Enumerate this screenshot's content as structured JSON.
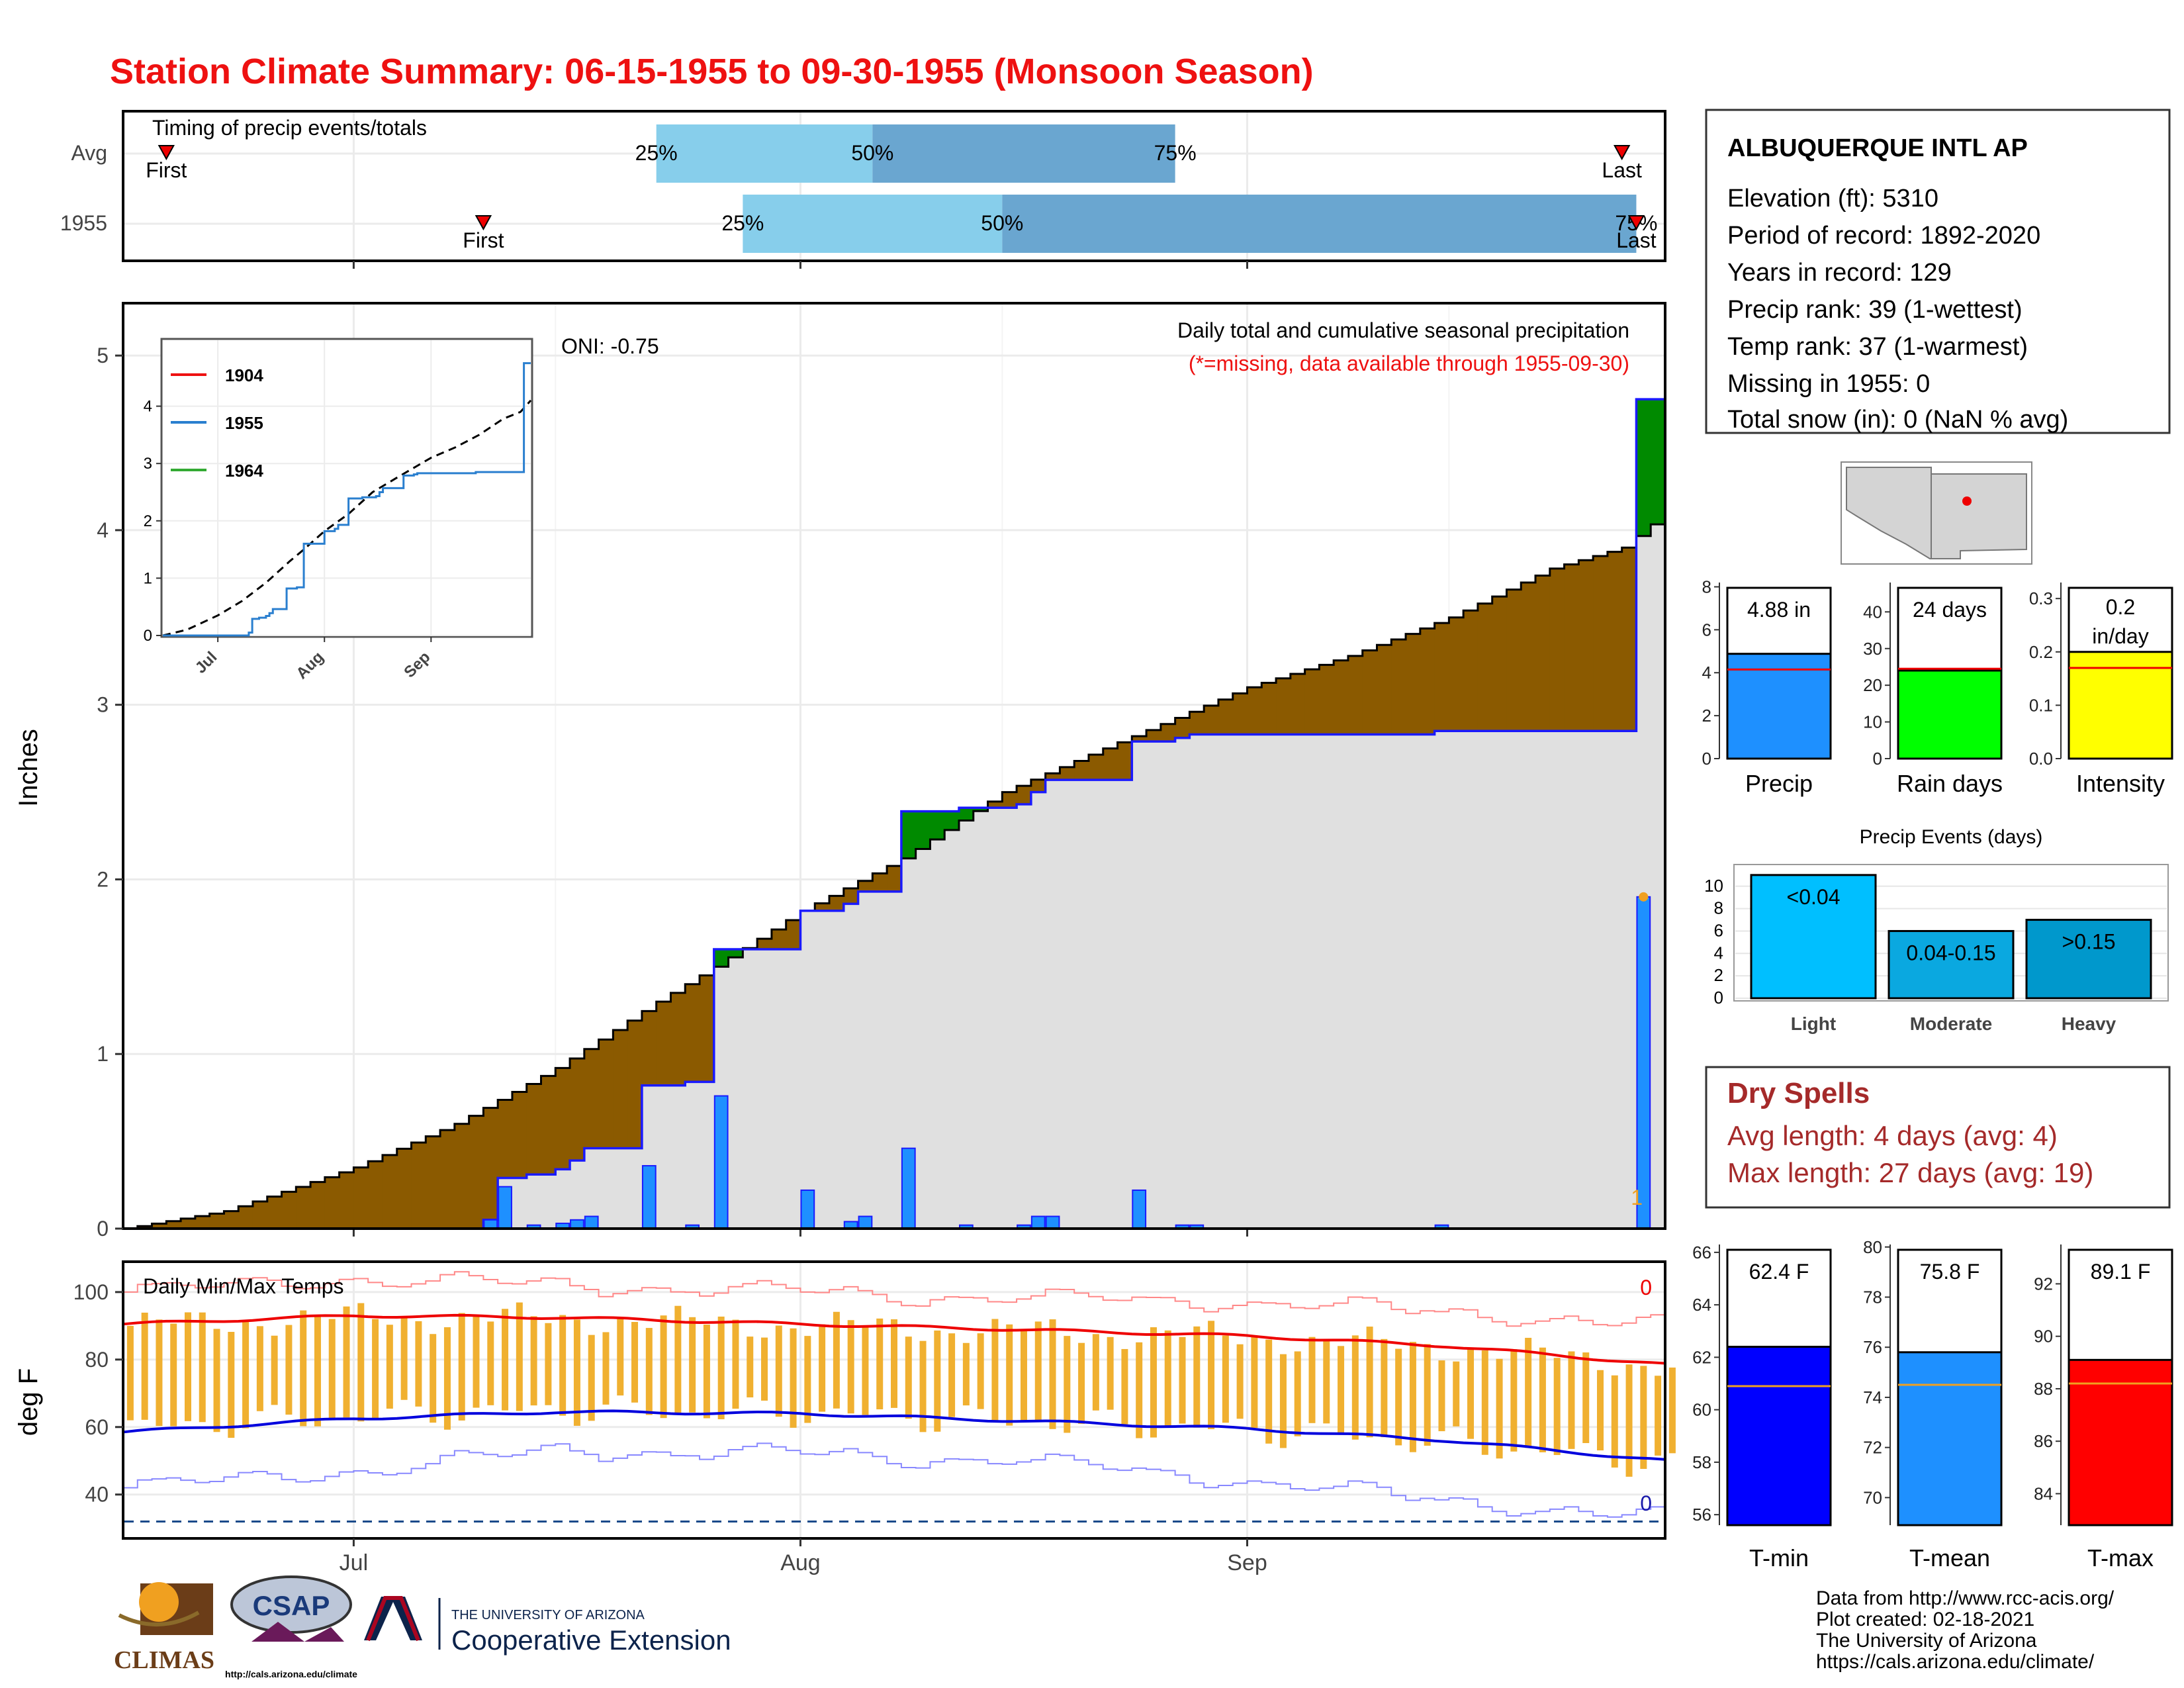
{
  "title": "Station Climate Summary: 06-15-1955 to 09-30-1955 (Monsoon Season)",
  "colors": {
    "title": "#ee1111",
    "light_blue": "#87ceeb",
    "mid_blue": "#6aa6d0",
    "brown": "#8b5a00",
    "green": "#008a00",
    "grey_fill": "#e0e0e0",
    "blue_line": "#1a1aff",
    "bar_blue": "#1e90ff",
    "orange": "#f0b030",
    "red": "#ee0000",
    "dry_spell_text": "#a52a2a"
  },
  "timing_panel": {
    "title": "Timing of precip events/totals",
    "rows": [
      {
        "label": "Avg",
        "first_label": "First",
        "last_label": "Last",
        "q25_label": "25%",
        "q50_label": "50%",
        "q75_label": "75%",
        "first": "1955-06-18",
        "q25": "1955-07-22",
        "q50": "1955-08-06",
        "q75": "1955-08-27",
        "last": "1955-09-27"
      },
      {
        "label": "1955",
        "first_label": "First",
        "last_label": "Last",
        "q25_label": "25%",
        "q50_label": "50%",
        "q75_label": "75%",
        "first": "1955-07-10",
        "q25": "1955-07-28",
        "q50": "1955-08-15",
        "q75": "1955-09-28",
        "last": "1955-09-28"
      }
    ]
  },
  "precip_panel": {
    "ylabel": "Inches",
    "oni_text": "ONI: -0.75",
    "subtitle": "Daily total and cumulative seasonal precipitation",
    "missing_note": "(*=missing, data available through 1955-09-30)",
    "corner_count": "1",
    "yticks": [
      "0",
      "1",
      "2",
      "3",
      "4",
      "5"
    ],
    "ylim": [
      0,
      5.3
    ],
    "inset": {
      "legend": [
        "1904",
        "1955",
        "1964"
      ],
      "legend_colors": [
        "#ee1111",
        "#2a7fcf",
        "#33aa33"
      ],
      "yticks": [
        "0",
        "1",
        "2",
        "3",
        "4"
      ],
      "xticks": [
        "Jul",
        "Aug",
        "Sep"
      ]
    }
  },
  "temp_panel": {
    "ylabel": "deg F",
    "title": "Daily Min/Max Temps",
    "top_count": "0",
    "bottom_count": "0",
    "yticks": [
      "40",
      "60",
      "80",
      "100"
    ],
    "xticks": [
      "Jul",
      "Aug",
      "Sep"
    ]
  },
  "station": {
    "name": "ALBUQUERQUE INTL AP",
    "lines": [
      "Elevation (ft): 5310",
      "Period of record: 1892-2020",
      "Years in record: 129",
      "Precip rank: 39 (1-wettest)",
      "Temp rank: 37 (1-warmest)",
      "Missing in 1955: 0",
      "Total snow (in): 0 (NaN % avg)"
    ]
  },
  "summary_bars": [
    {
      "name": "Precip",
      "value_label": "4.88 in",
      "value": 4.88,
      "avg": 4.15,
      "ylim": [
        0,
        8.2
      ],
      "yticks": [
        0,
        2,
        4,
        6,
        8
      ],
      "color": "#1e90ff"
    },
    {
      "name": "Rain days",
      "value_label": "24 days",
      "value": 24,
      "avg": 24.5,
      "ylim": [
        0,
        48
      ],
      "yticks": [
        0,
        10,
        20,
        30,
        40
      ],
      "color": "#00ff00"
    },
    {
      "name": "Intensity",
      "value_label": "0.2 in/day",
      "value": 0.2,
      "avg": 0.17,
      "ylim": [
        0,
        0.33
      ],
      "yticks": [
        0.0,
        0.1,
        0.2,
        0.3
      ],
      "color": "#ffff00"
    }
  ],
  "events": {
    "title": "Precip Events (days)",
    "categories": [
      "Light",
      "Moderate",
      "Heavy"
    ],
    "bar_labels": [
      "<0.04",
      "0.04-0.15",
      ">0.15"
    ],
    "values": [
      11,
      6,
      7
    ],
    "yticks": [
      0,
      2,
      4,
      6,
      8,
      10
    ],
    "colors": [
      "#00bfff",
      "#0aa8e0",
      "#0098cc"
    ]
  },
  "dry_spells": {
    "title": "Dry Spells",
    "avg_line": "Avg length: 4 days (avg: 4)",
    "max_line": "Max length: 27 days (avg: 19)"
  },
  "temp_bars": [
    {
      "name": "T-min",
      "value_label": "62.4 F",
      "value": 62.4,
      "avg": 60.9,
      "ylim": [
        55.6,
        66.3
      ],
      "yticks": [
        56,
        58,
        60,
        62,
        64,
        66
      ],
      "color": "#0000ff"
    },
    {
      "name": "T-mean",
      "value_label": "75.8 F",
      "value": 75.8,
      "avg": 74.5,
      "ylim": [
        68.9,
        80.1
      ],
      "yticks": [
        70,
        72,
        74,
        76,
        78,
        80
      ],
      "color": "#1e90ff"
    },
    {
      "name": "T-max",
      "value_label": "89.1 F",
      "value": 89.1,
      "avg": 88.2,
      "ylim": [
        82.8,
        93.5
      ],
      "yticks": [
        84,
        86,
        88,
        90,
        92
      ],
      "color": "#ff0000"
    }
  ],
  "credits": [
    "Data from http://www.rcc-acis.org/",
    "Plot created: 02-18-2021",
    "The University of Arizona",
    "https://cals.arizona.edu/climate/"
  ],
  "logos": {
    "climas": "CLIMAS",
    "csap": "CSAP",
    "csap_url": "http://cals.arizona.edu/climate",
    "ua_line1": "THE UNIVERSITY OF ARIZONA",
    "ua_line2": "Cooperative Extension"
  },
  "chart_data": [
    {
      "type": "area",
      "title": "Daily total and cumulative seasonal precipitation",
      "ylabel": "Inches",
      "xlabel": "",
      "x_start": "1955-06-15",
      "x_end": "1955-09-30",
      "ylim": [
        0,
        5.3
      ],
      "xticks": [
        "Jul",
        "Aug",
        "Sep"
      ],
      "daily_precip_1955": [
        [
          "1955-07-10",
          0.05
        ],
        [
          "1955-07-11",
          0.24
        ],
        [
          "1955-07-13",
          0.02
        ],
        [
          "1955-07-15",
          0.03
        ],
        [
          "1955-07-16",
          0.05
        ],
        [
          "1955-07-17",
          0.07
        ],
        [
          "1955-07-21",
          0.36
        ],
        [
          "1955-07-24",
          0.02
        ],
        [
          "1955-07-26",
          0.76
        ],
        [
          "1955-08-01",
          0.22
        ],
        [
          "1955-08-04",
          0.04
        ],
        [
          "1955-08-05",
          0.07
        ],
        [
          "1955-08-08",
          0.46
        ],
        [
          "1955-08-12",
          0.02
        ],
        [
          "1955-08-16",
          0.02
        ],
        [
          "1955-08-17",
          0.07
        ],
        [
          "1955-08-18",
          0.07
        ],
        [
          "1955-08-24",
          0.22
        ],
        [
          "1955-08-27",
          0.02
        ],
        [
          "1955-08-28",
          0.02
        ],
        [
          "1955-09-14",
          0.02
        ],
        [
          "1955-09-28",
          1.9
        ]
      ],
      "avg_cumulative": [
        [
          "1955-06-15",
          0.0
        ],
        [
          "1955-06-22",
          0.1
        ],
        [
          "1955-07-01",
          0.35
        ],
        [
          "1955-07-08",
          0.6
        ],
        [
          "1955-07-15",
          0.92
        ],
        [
          "1955-07-22",
          1.3
        ],
        [
          "1955-07-26",
          1.5
        ],
        [
          "1955-08-01",
          1.82
        ],
        [
          "1955-08-08",
          2.12
        ],
        [
          "1955-08-15",
          2.5
        ],
        [
          "1955-08-22",
          2.75
        ],
        [
          "1955-09-01",
          3.1
        ],
        [
          "1955-09-08",
          3.28
        ],
        [
          "1955-09-15",
          3.5
        ],
        [
          "1955-09-22",
          3.78
        ],
        [
          "1955-09-27",
          3.9
        ],
        [
          "1955-09-30",
          4.1
        ]
      ],
      "record_point": [
        "1955-09-28",
        1.9
      ]
    },
    {
      "type": "line",
      "title": "Daily Min/Max Temps",
      "ylabel": "deg F",
      "ylim": [
        27,
        109
      ],
      "xticks": [
        "Jul",
        "Aug",
        "Sep"
      ],
      "freezing_line": 32,
      "avg_max": [
        [
          "1955-06-15",
          90.5
        ],
        [
          "1955-07-01",
          93
        ],
        [
          "1955-07-15",
          92.5
        ],
        [
          "1955-08-01",
          90.5
        ],
        [
          "1955-08-15",
          89
        ],
        [
          "1955-09-01",
          87
        ],
        [
          "1955-09-15",
          84
        ],
        [
          "1955-09-30",
          78.5
        ]
      ],
      "avg_min": [
        [
          "1955-06-15",
          58.5
        ],
        [
          "1955-07-01",
          62.5
        ],
        [
          "1955-07-15",
          64.5
        ],
        [
          "1955-08-01",
          64
        ],
        [
          "1955-08-15",
          62
        ],
        [
          "1955-09-01",
          59.5
        ],
        [
          "1955-09-15",
          56
        ],
        [
          "1955-09-30",
          50
        ]
      ],
      "record_max": [
        [
          "1955-06-15",
          100
        ],
        [
          "1955-07-01",
          104
        ],
        [
          "1955-07-15",
          102
        ],
        [
          "1955-08-01",
          100
        ],
        [
          "1955-08-15",
          98
        ],
        [
          "1955-09-01",
          97
        ],
        [
          "1955-09-15",
          94
        ],
        [
          "1955-09-30",
          90
        ]
      ],
      "record_min": [
        [
          "1955-06-15",
          42
        ],
        [
          "1955-07-01",
          47
        ],
        [
          "1955-07-15",
          53
        ],
        [
          "1955-08-01",
          52
        ],
        [
          "1955-08-15",
          50
        ],
        [
          "1955-09-01",
          44
        ],
        [
          "1955-09-15",
          38
        ],
        [
          "1955-09-30",
          33
        ]
      ],
      "obs_max_range": [
        83,
        98
      ],
      "obs_min_range": [
        55,
        68
      ]
    }
  ]
}
